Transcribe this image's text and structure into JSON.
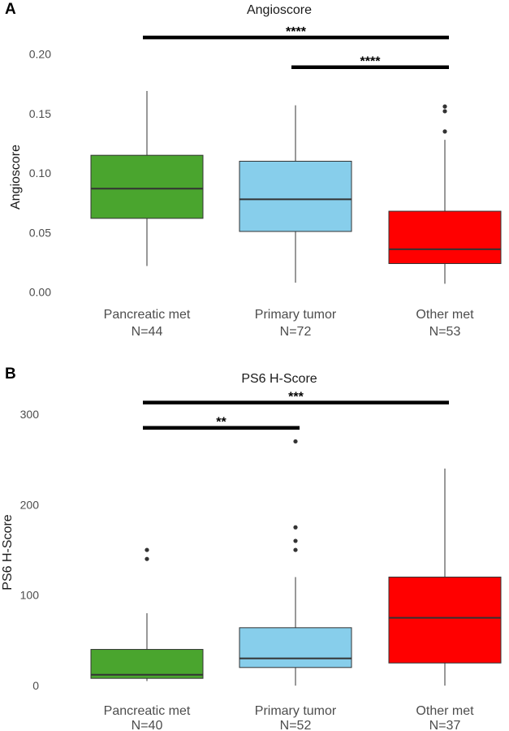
{
  "chart_data": [
    {
      "panel": "A",
      "type": "box",
      "title": "Angioscore",
      "ylabel": "Angioscore",
      "ylim": [
        -0.005,
        0.225
      ],
      "yticks": [
        "0.00",
        "0.05",
        "0.10",
        "0.15",
        "0.20"
      ],
      "ytick_values": [
        0,
        0.05,
        0.1,
        0.15,
        0.2
      ],
      "categories": [
        "Pancreatic met",
        "Primary tumor",
        "Other met"
      ],
      "counts": [
        "N=44",
        "N=72",
        "N=53"
      ],
      "boxes": [
        {
          "category": "Pancreatic met",
          "color": "#4aa52e",
          "whisker_low": 0.022,
          "q1": 0.062,
          "median": 0.087,
          "q3": 0.115,
          "whisker_high": 0.169,
          "outliers": []
        },
        {
          "category": "Primary tumor",
          "color": "#87ceeb",
          "whisker_low": 0.008,
          "q1": 0.051,
          "median": 0.078,
          "q3": 0.11,
          "whisker_high": 0.157,
          "outliers": []
        },
        {
          "category": "Other met",
          "color": "#ff0000",
          "whisker_low": 0.007,
          "q1": 0.024,
          "median": 0.036,
          "q3": 0.068,
          "whisker_high": 0.128,
          "outliers": [
            0.135,
            0.152,
            0.156
          ]
        }
      ],
      "significance": [
        {
          "from": 0,
          "to": 2,
          "level": 0.214,
          "label": "****"
        },
        {
          "from": 1,
          "to": 2,
          "level": 0.189,
          "label": "****"
        }
      ]
    },
    {
      "panel": "B",
      "type": "box",
      "title": "PS6 H-Score",
      "ylabel": "PS6 H-Score",
      "ylim": [
        -8,
        318
      ],
      "yticks": [
        "0",
        "100",
        "200",
        "300"
      ],
      "ytick_values": [
        0,
        100,
        200,
        300
      ],
      "categories": [
        "Pancreatic met",
        "Primary tumor",
        "Other met"
      ],
      "counts": [
        "N=40",
        "N=52",
        "N=37"
      ],
      "boxes": [
        {
          "category": "Pancreatic met",
          "color": "#4aa52e",
          "whisker_low": 5,
          "q1": 8,
          "median": 12,
          "q3": 40,
          "whisker_high": 80,
          "outliers": [
            140,
            150
          ]
        },
        {
          "category": "Primary tumor",
          "color": "#87ceeb",
          "whisker_low": 0,
          "q1": 20,
          "median": 30,
          "q3": 64,
          "whisker_high": 120,
          "outliers": [
            150,
            160,
            175,
            270
          ]
        },
        {
          "category": "Other met",
          "color": "#ff0000",
          "whisker_low": 0,
          "q1": 25,
          "median": 75,
          "q3": 120,
          "whisker_high": 240,
          "outliers": []
        }
      ],
      "significance": [
        {
          "from": 0,
          "to": 2,
          "level": 313,
          "label": "***"
        },
        {
          "from": 0,
          "to": 1,
          "level": 285,
          "label": "**"
        }
      ]
    }
  ]
}
